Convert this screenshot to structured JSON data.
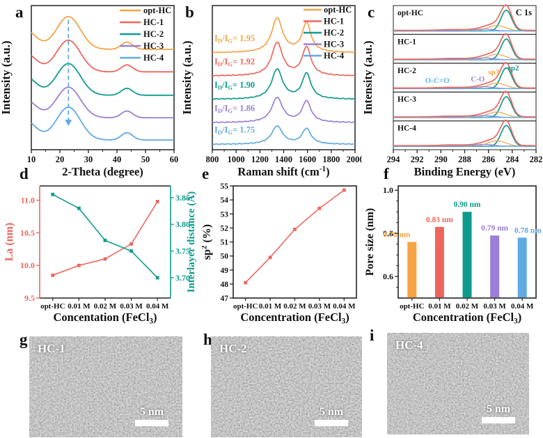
{
  "panels": {
    "a": {
      "letter": "a"
    },
    "b": {
      "letter": "b"
    },
    "c": {
      "letter": "c"
    },
    "d": {
      "letter": "d"
    },
    "e": {
      "letter": "e"
    },
    "f": {
      "letter": "f"
    },
    "g": {
      "letter": "g"
    },
    "h": {
      "letter": "h"
    },
    "i": {
      "letter": "i"
    }
  },
  "palette": {
    "opt_hc": "#F6A344",
    "hc1": "#ED665C",
    "hc2": "#0E9B8F",
    "hc3": "#9B7ED7",
    "hc4": "#5FA9E5",
    "annotation_lightblue": "#58B6F0",
    "axis_dark": "#222222"
  },
  "chart_data": [
    {
      "id": "a",
      "type": "line",
      "xlabel_segments": [
        {
          "t": "2-Theta (degree)"
        }
      ],
      "ylabel_segments": [
        {
          "t": "Intensity (a.u.)"
        }
      ],
      "xlim": [
        10,
        60
      ],
      "xticks": [
        10,
        20,
        30,
        40,
        50,
        60
      ],
      "xminors": [
        15,
        25,
        35,
        45,
        55
      ],
      "ylim": [
        0,
        6.6
      ],
      "legend": [
        {
          "label": "opt-HC",
          "color": "#F6A344"
        },
        {
          "label": "HC-1",
          "color": "#ED665C"
        },
        {
          "label": "HC-2",
          "color": "#0E9B8F"
        },
        {
          "label": "HC-3",
          "color": "#9B7ED7"
        },
        {
          "label": "HC-4",
          "color": "#5FA9E5"
        }
      ],
      "series": [
        {
          "name": "opt-HC",
          "color": "#F6A344",
          "offset": 4.55,
          "amp": 1.5
        },
        {
          "name": "HC-1",
          "color": "#ED665C",
          "offset": 3.52,
          "amp": 1.45
        },
        {
          "name": "HC-2",
          "color": "#0E9B8F",
          "offset": 2.45,
          "amp": 1.45
        },
        {
          "name": "HC-3",
          "color": "#9B7ED7",
          "offset": 1.42,
          "amp": 1.4
        },
        {
          "name": "HC-4",
          "color": "#5FA9E5",
          "offset": 0.4,
          "amp": 1.5
        }
      ],
      "curve_model": {
        "peaks": [
          {
            "c": 23,
            "w": 4.2,
            "h": 1.0
          },
          {
            "c": 43.5,
            "w": 2.0,
            "h": 0.22
          },
          {
            "c": 7.5,
            "w": 4.0,
            "h": 0.62
          }
        ],
        "base": 0.03
      },
      "arrow": {
        "x": 23,
        "color": "#5FA9E5",
        "top_frac": 0.9,
        "bottom_frac": 0.165
      }
    },
    {
      "id": "b",
      "type": "line",
      "xlabel_segments": [
        {
          "t": "Raman shift (cm"
        },
        {
          "t": "-1",
          "sup": true
        },
        {
          "t": ")"
        }
      ],
      "ylabel_segments": [
        {
          "t": "Intensity (a.u.)"
        }
      ],
      "xlim": [
        800,
        2000
      ],
      "xticks": [
        800,
        1000,
        1200,
        1400,
        1600,
        1800,
        2000
      ],
      "xminor_step": 100,
      "ylim": [
        0,
        6.5
      ],
      "legend": [
        {
          "label": "opt-HC",
          "color": "#F6A344"
        },
        {
          "label": "HC-1",
          "color": "#ED665C"
        },
        {
          "label": "HC-2",
          "color": "#0E9B8F"
        },
        {
          "label": "HC-3",
          "color": "#9B7ED7"
        },
        {
          "label": "HC-4",
          "color": "#5FA9E5"
        }
      ],
      "ratio_prefix_segments": [
        {
          "t": "I"
        },
        {
          "t": "D",
          "sub": true
        },
        {
          "t": "/I"
        },
        {
          "t": "G",
          "sub": true
        },
        {
          "t": "= "
        }
      ],
      "series": [
        {
          "name": "opt-HC",
          "color": "#F6A344",
          "offset": 4.35,
          "amp": 1.55,
          "ratio": "1.95"
        },
        {
          "name": "HC-1",
          "color": "#ED665C",
          "offset": 3.3,
          "amp": 1.5,
          "ratio": "1.92"
        },
        {
          "name": "HC-2",
          "color": "#0E9B8F",
          "offset": 2.25,
          "amp": 1.35,
          "ratio": "1.90"
        },
        {
          "name": "HC-3",
          "color": "#9B7ED7",
          "offset": 1.2,
          "amp": 1.12,
          "ratio": "1.86"
        },
        {
          "name": "HC-4",
          "color": "#5FA9E5",
          "offset": 0.22,
          "amp": 0.82,
          "ratio": "1.75"
        }
      ],
      "curve_model": {
        "d_center": 1345,
        "d_width": 55,
        "g_center": 1592,
        "g_width": 45,
        "g_ratio": 0.85,
        "base": 0.02
      }
    },
    {
      "id": "c",
      "type": "xps",
      "xlabel_segments": [
        {
          "t": "Binding Energy (eV)"
        }
      ],
      "ylabel_segments": [
        {
          "t": "Intensity (a.u.)"
        }
      ],
      "xlim": [
        294,
        282
      ],
      "xticks": [
        294,
        292,
        290,
        288,
        286,
        284,
        282
      ],
      "xminors": [
        293,
        291,
        289,
        287,
        285,
        283
      ],
      "corner_label": "C 1s",
      "samples": [
        "opt-HC",
        "HC-1",
        "HC-2",
        "HC-3",
        "HC-4"
      ],
      "components": [
        {
          "name": "sp2",
          "color": "#0E9B8F",
          "center": 284.5,
          "width": 0.45,
          "height": 1.0
        },
        {
          "name": "sp3",
          "color": "#F6A344",
          "center": 285.3,
          "width": 0.75,
          "height": 0.26
        },
        {
          "name": "C-O",
          "color": "#9B7ED7",
          "center": 286.4,
          "width": 0.8,
          "height": 0.09
        },
        {
          "name": "O-C=O",
          "color": "#58B6F0",
          "center": 289.0,
          "width": 1.1,
          "height": 0.035
        }
      ],
      "envelope_color": "#ED665C",
      "baseline_color": "#5FA9E5",
      "annotations": [
        {
          "text": "O-C=O",
          "color": "#58B6F0",
          "x": 290.3,
          "dy": -8,
          "subpanel": 2
        },
        {
          "text": "C-O",
          "color": "#9B7ED7",
          "x": 286.9,
          "dy": -10,
          "subpanel": 2
        },
        {
          "text": "sp3",
          "color": "#F6A344",
          "x": 285.55,
          "dy": -20,
          "subpanel": 2
        },
        {
          "text": "sp2",
          "color": "#0E9B8F",
          "x": 283.9,
          "dy": -26,
          "subpanel": 2
        }
      ]
    },
    {
      "id": "d",
      "type": "dual-line",
      "categories": [
        "opt-HC",
        "0.01 M",
        "0.02 M",
        "0.03 M",
        "0.04 M"
      ],
      "xlabel_segments": [
        {
          "t": "Concentation (FeCl"
        },
        {
          "t": "3",
          "sub": true
        },
        {
          "t": ")"
        }
      ],
      "left": {
        "label_segments": [
          {
            "t": "La (nm)"
          }
        ],
        "color": "#ED665C",
        "tick_labels": [
          "9.5",
          "10.0",
          "10.5",
          "11.0"
        ],
        "tick_vals": [
          9.5,
          10.0,
          10.5,
          11.0
        ],
        "range": [
          9.5,
          11.22
        ],
        "values": [
          9.85,
          10.0,
          10.1,
          10.33,
          10.98
        ]
      },
      "right": {
        "label_segments": [
          {
            "t": "Interlayer distance (Å)"
          }
        ],
        "color": "#0E9B8F",
        "tick_labels": [
          "3.70",
          "3.75",
          "3.80",
          "3.85"
        ],
        "tick_vals": [
          3.7,
          3.75,
          3.8,
          3.85
        ],
        "range": [
          3.662,
          3.872
        ],
        "values": [
          3.856,
          3.83,
          3.77,
          3.75,
          3.7
        ]
      }
    },
    {
      "id": "e",
      "type": "line-cat",
      "categories": [
        "opt-HC",
        "0.01 M",
        "0.02 M",
        "0.03 M",
        "0.04 M"
      ],
      "xlabel_segments": [
        {
          "t": "Concentration (FeCl"
        },
        {
          "t": "3",
          "sub": true
        },
        {
          "t": ")"
        }
      ],
      "ylabel_segments": [
        {
          "t": "sp"
        },
        {
          "t": "2",
          "sup": true
        },
        {
          "t": " (%)"
        }
      ],
      "tick_labels": [
        "47",
        "48",
        "49",
        "50",
        "51",
        "52",
        "53",
        "54",
        "55"
      ],
      "tick_vals": [
        47,
        48,
        49,
        50,
        51,
        52,
        53,
        54,
        55
      ],
      "range": [
        47,
        55
      ],
      "color": "#ED665C",
      "values": [
        48.1,
        49.9,
        51.9,
        53.4,
        54.7
      ]
    },
    {
      "id": "f",
      "type": "bar",
      "categories": [
        "opt-HC",
        "0.01 M",
        "0.02 M",
        "0.03 M",
        "0.04 M"
      ],
      "xlabel_segments": [
        {
          "t": "Concentration (FeCl"
        },
        {
          "t": "3",
          "sub": true
        },
        {
          "t": ")"
        }
      ],
      "ylabel_segments": [
        {
          "t": "Pore size (nm)"
        }
      ],
      "tick_labels": [
        "0.6",
        "0.8",
        "1.0"
      ],
      "tick_vals": [
        0.6,
        0.8,
        1.0
      ],
      "yminors": [
        0.55,
        0.65,
        0.7,
        0.75,
        0.85,
        0.9,
        0.95
      ],
      "range": [
        0.5,
        1.02
      ],
      "values": [
        0.76,
        0.83,
        0.9,
        0.79,
        0.78
      ],
      "bar_labels": [
        "0.76 nm",
        "0.83 nm",
        "0.90 nm",
        "0.79 nm",
        "0.78 nm"
      ],
      "colors": [
        "#F6A344",
        "#ED665C",
        "#0E9B8F",
        "#9B7ED7",
        "#5FA9E5"
      ],
      "label_dx": [
        -22,
        0,
        0,
        0,
        8
      ]
    }
  ],
  "tem_panels": [
    {
      "letter": "g",
      "label": "HC-1",
      "scale_text": "5 nm"
    },
    {
      "letter": "h",
      "label": "HC-2",
      "scale_text": "5 nm"
    },
    {
      "letter": "i",
      "label": "HC-4",
      "scale_text": "5 nm"
    }
  ]
}
